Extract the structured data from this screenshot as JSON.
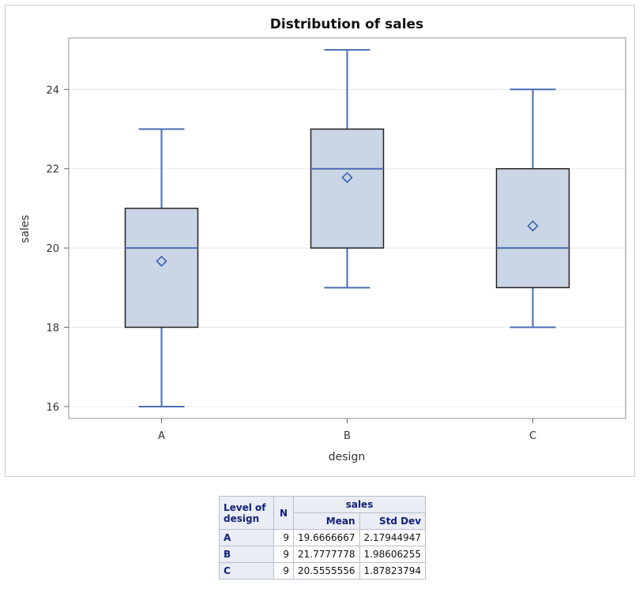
{
  "chart_data": {
    "type": "box",
    "title": "Distribution of sales",
    "xlabel": "design",
    "ylabel": "sales",
    "ylim": [
      15.7,
      25.3
    ],
    "yticks": [
      "16",
      "18",
      "20",
      "22",
      "24"
    ],
    "categories": [
      "A",
      "B",
      "C"
    ],
    "boxes": [
      {
        "category": "A",
        "min": 16,
        "q1": 18,
        "median": 20,
        "q3": 21,
        "max": 23,
        "mean": 19.6666667
      },
      {
        "category": "B",
        "min": 19,
        "q1": 20,
        "median": 22,
        "q3": 23,
        "max": 25,
        "mean": 21.7777778
      },
      {
        "category": "C",
        "min": 18,
        "q1": 19,
        "median": 20,
        "q3": 22,
        "max": 24,
        "mean": 20.5555556
      }
    ],
    "colors": {
      "box_fill": "#cad5e5",
      "box_edge": "#222222",
      "whisker": "#4a6cb3",
      "grid": "#e8e8ec",
      "mean_marker": "#3b5fb3"
    }
  },
  "table": {
    "group_header": "sales",
    "headers": {
      "level": "Level of design",
      "n": "N",
      "mean": "Mean",
      "std": "Std Dev"
    },
    "rows": [
      {
        "level": "A",
        "n": "9",
        "mean": "19.6666667",
        "std": "2.17944947"
      },
      {
        "level": "B",
        "n": "9",
        "mean": "21.7777778",
        "std": "1.98606255"
      },
      {
        "level": "C",
        "n": "9",
        "mean": "20.5555556",
        "std": "1.87823794"
      }
    ]
  }
}
